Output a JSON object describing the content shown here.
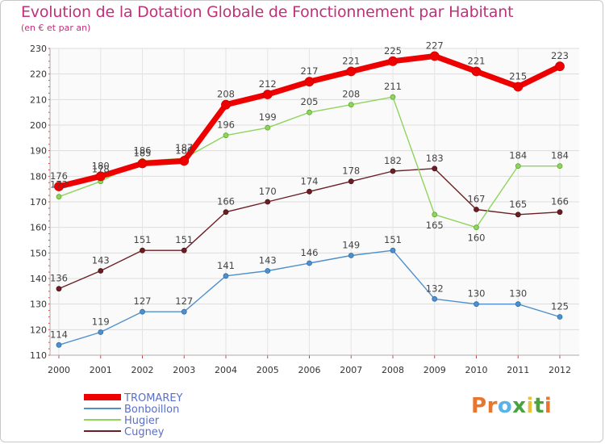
{
  "title": "Evolution de la Dotation Globale de Fonctionnement par Habitant",
  "subtitle": "(en € et par an)",
  "brand": {
    "letters": [
      "P",
      "r",
      "o",
      "x",
      "i",
      "t",
      "i"
    ],
    "colors": [
      "#e8762d",
      "#e8762d",
      "#5ab2e6",
      "#4aa33f",
      "#e8c23a",
      "#4aa33f",
      "#e8762d"
    ]
  },
  "chart_data": {
    "type": "line",
    "x": [
      2000,
      2001,
      2002,
      2003,
      2004,
      2005,
      2006,
      2007,
      2008,
      2009,
      2010,
      2011,
      2012
    ],
    "ylim": [
      110,
      230
    ],
    "yticks": [
      110,
      120,
      130,
      140,
      150,
      160,
      170,
      180,
      190,
      200,
      210,
      220,
      230
    ],
    "grid": true,
    "legend_position": "bottom-left",
    "series": [
      {
        "name": "Cugney",
        "color": "#6b1f24",
        "values": [
          136,
          143,
          151,
          151,
          166,
          170,
          174,
          178,
          182,
          183,
          167,
          165,
          166
        ]
      },
      {
        "name": "Hugier",
        "color": "#8fd45e",
        "values": [
          172,
          178,
          186,
          187,
          196,
          199,
          205,
          208,
          211,
          165,
          160,
          184,
          184
        ]
      },
      {
        "name": "Bonboillon",
        "color": "#4f90cc",
        "values": [
          114,
          119,
          127,
          127,
          141,
          143,
          146,
          149,
          151,
          132,
          130,
          130,
          125
        ]
      },
      {
        "name": "TROMAREY",
        "color": "#ee0000",
        "values": [
          176,
          180,
          185,
          186,
          208,
          212,
          217,
          221,
          225,
          227,
          221,
          215,
          223
        ]
      }
    ],
    "labels": {
      "TROMAREY": [
        "176",
        "180",
        "185",
        "186",
        "208",
        "212",
        "217",
        "221",
        "225",
        "227",
        "221",
        "215",
        "223"
      ],
      "Hugier": [
        "172",
        "178",
        "186",
        "187",
        "196",
        "199",
        "205",
        "208",
        "211",
        "165",
        "160",
        "184",
        "184"
      ],
      "Cugney": [
        "136",
        "143",
        "151",
        "151",
        "166",
        "170",
        "174",
        "178",
        "182",
        "183",
        "167",
        "165",
        "166"
      ],
      "Bonboillon": [
        "114",
        "119",
        "127",
        "127",
        "141",
        "143",
        "146",
        "149",
        "151",
        "132",
        "130",
        "130",
        "125"
      ]
    },
    "legend": [
      "TROMAREY",
      "Bonboillon",
      "Hugier",
      "Cugney"
    ]
  }
}
